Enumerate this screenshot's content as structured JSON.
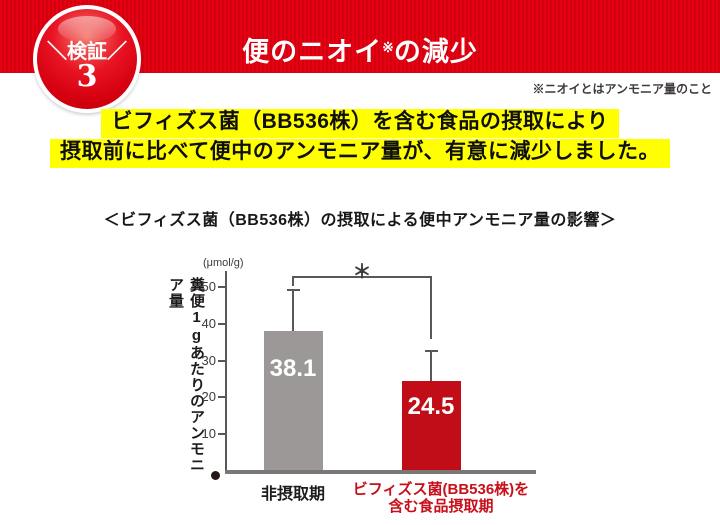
{
  "badge": {
    "top_label": "＼検証／",
    "number": "3"
  },
  "banner": {
    "title_1": "便のニオイ",
    "note_mark": "※",
    "title_2": "の減少"
  },
  "note": "※ニオイとはアンモニア量のこと",
  "lead": {
    "line1": "ビフィズス菌（BB536株）を含む食品の摂取により",
    "line2": "摂取前に比べて便中のアンモニア量が、有意に減少しました。"
  },
  "chart_title": "＜ビフィズス菌（BB536株）の摂取による便中アンモニア量の影響＞",
  "chart_data": {
    "type": "bar",
    "title": "＜ビフィズス菌（BB536株）の摂取による便中アンモニア量の影響＞",
    "unit_label": "(μmol/g)",
    "ylabel": "糞便1gあたりのアンモニア量",
    "ylim": [
      0,
      50
    ],
    "yticks": [
      10,
      20,
      30,
      40,
      50
    ],
    "grid": false,
    "legend": null,
    "significance_marker": "＊",
    "series": [
      {
        "name": "非摂取期",
        "category_lines": [
          "非摂取期"
        ],
        "value": 38.1,
        "value_label": "38.1",
        "error_top": 49.5,
        "bar_color": "#9b9897",
        "value_label_color": "#ffffff",
        "category_color": "#1e1b1b"
      },
      {
        "name": "ビフィズス菌(BB536株)を含む食品摂取期",
        "category_lines": [
          "ビフィズス菌(BB536株)を",
          "含む食品摂取期"
        ],
        "value": 24.5,
        "value_label": "24.5",
        "error_top": 33.0,
        "bar_color": "#c00d18",
        "value_label_color": "#ffffff",
        "category_color": "#c8101a"
      }
    ]
  },
  "colors": {
    "banner_red": "#e60012",
    "banner_stripe_red": "#d20110",
    "highlight_yellow": "#ffff00",
    "bar_gray": "#9b9897",
    "bar_red": "#c00d18",
    "axis_gray": "#595757",
    "baseline_gray": "#7b7777",
    "label_red": "#c8101a"
  }
}
